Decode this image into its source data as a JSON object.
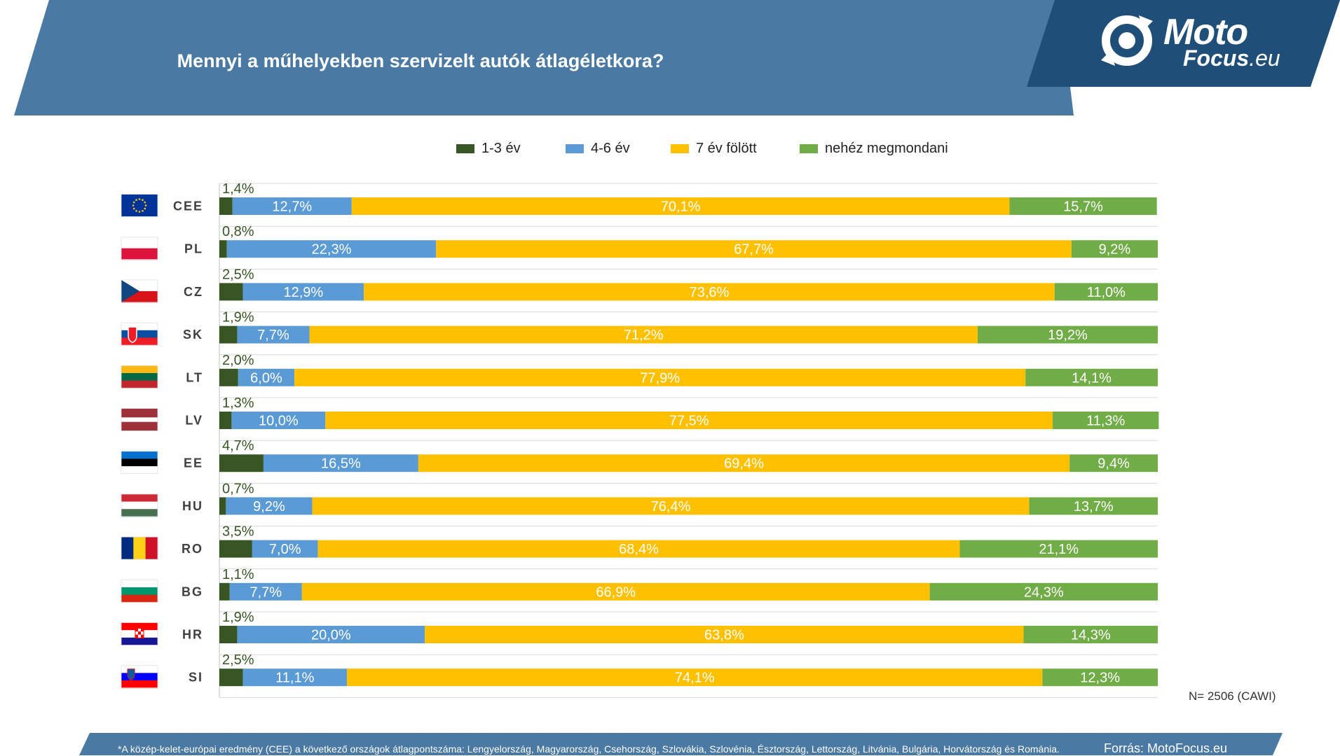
{
  "header": {
    "title": "Mennyi a műhelyekben szervizelt autók átlagéletkora?",
    "logo_top": "Moto",
    "logo_bottom": "Focus",
    "logo_suffix": ".eu"
  },
  "colors": {
    "banner": "#4a7aa3",
    "logo_bg": "#1f4e79",
    "footer": "#4a7aa3"
  },
  "legend": [
    {
      "label": "1-3 év",
      "color": "#375623"
    },
    {
      "label": "4-6 év",
      "color": "#5b9bd5"
    },
    {
      "label": "7 év fölött",
      "color": "#ffc000"
    },
    {
      "label": "nehéz megmondani",
      "color": "#70ad47"
    }
  ],
  "chart_data": {
    "type": "bar",
    "orientation": "horizontal",
    "stacked": "100%",
    "categories": [
      "CEE",
      "PL",
      "CZ",
      "SK",
      "LT",
      "LV",
      "EE",
      "HU",
      "RO",
      "BG",
      "HR",
      "SI"
    ],
    "series": [
      {
        "name": "1-3 év",
        "color": "#375623",
        "values": [
          1.4,
          0.8,
          2.5,
          1.9,
          2.0,
          1.3,
          4.7,
          0.7,
          3.5,
          1.1,
          1.9,
          2.5
        ],
        "labels": [
          "1,4%",
          "0,8%",
          "2,5%",
          "1,9%",
          "2,0%",
          "1,3%",
          "4,7%",
          "0,7%",
          "3,5%",
          "1,1%",
          "1,9%",
          "2,5%"
        ]
      },
      {
        "name": "4-6 év",
        "color": "#5b9bd5",
        "values": [
          12.7,
          22.3,
          12.9,
          7.7,
          6.0,
          10.0,
          16.5,
          9.2,
          7.0,
          7.7,
          20.0,
          11.1
        ],
        "labels": [
          "12,7%",
          "22,3%",
          "12,9%",
          "7,7%",
          "6,0%",
          "10,0%",
          "16,5%",
          "9,2%",
          "7,0%",
          "7,7%",
          "20,0%",
          "11,1%"
        ]
      },
      {
        "name": "7 év fölött",
        "color": "#ffc000",
        "values": [
          70.1,
          67.7,
          73.6,
          71.2,
          77.9,
          77.5,
          69.4,
          76.4,
          68.4,
          66.9,
          63.8,
          74.1
        ],
        "labels": [
          "70,1%",
          "67,7%",
          "73,6%",
          "71,2%",
          "77,9%",
          "77,5%",
          "69,4%",
          "76,4%",
          "68,4%",
          "66,9%",
          "63,8%",
          "74,1%"
        ]
      },
      {
        "name": "nehéz megmondani",
        "color": "#70ad47",
        "values": [
          15.7,
          9.2,
          11.0,
          19.2,
          14.1,
          11.3,
          9.4,
          13.7,
          21.1,
          24.3,
          14.3,
          12.3
        ],
        "labels": [
          "15,7%",
          "9,2%",
          "11,0%",
          "19,2%",
          "14,1%",
          "11,3%",
          "9,4%",
          "13,7%",
          "21,1%",
          "24,3%",
          "14,3%",
          "12,3%"
        ]
      }
    ],
    "grid": true,
    "legend_position": "top"
  },
  "flags": [
    "eu",
    "pl",
    "cz",
    "sk",
    "lt",
    "lv",
    "ee",
    "hu",
    "ro",
    "bg",
    "hr",
    "si"
  ],
  "footer": {
    "note": "*A közép-kelet-európai eredmény (CEE) a következő országok átlagpontszáma: Lengyelország, Magyarország, Csehország, Szlovákia, Szlovénia, Észtország, Lettország, Litvánia, Bulgária, Horvátország és Románia.",
    "source": "Forrás: MotoFocus.eu",
    "sample": "N= 2506 (CAWI)"
  }
}
